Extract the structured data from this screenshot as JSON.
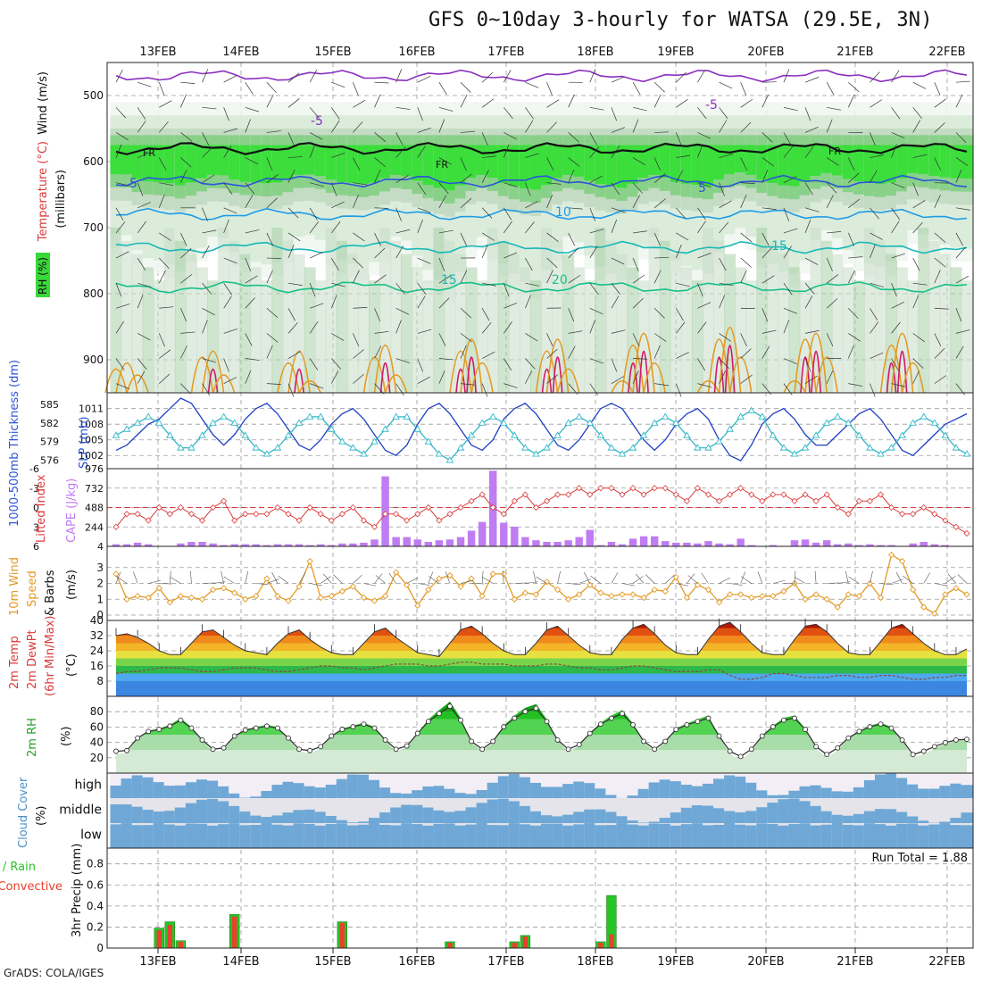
{
  "header": {
    "title": "GFS 0~10day 3-hourly for WATSA (29.5E, 3N)",
    "credit": "GrADS: COLA/IGES"
  },
  "colors": {
    "sounding_rh_green": "#39d839",
    "slp_line": "#1f3fc4",
    "thickness_line": "#35b8c8",
    "lifted_index": "#d93b3b",
    "cape_bars": "#c07cf2",
    "wind10m": "#e39a24",
    "precip_total": "#26c526",
    "precip_conv": "#e8412d",
    "cloud_blue": "#6fa8d6",
    "cloud_light": "#e4e4ea"
  },
  "time_axis": {
    "day_labels": [
      "13FEB",
      "14FEB",
      "15FEB",
      "16FEB",
      "17FEB",
      "18FEB",
      "19FEB",
      "20FEB",
      "21FEB",
      "22FEB"
    ]
  },
  "panels": {
    "sounding": {
      "ylabel_wind": "Wind (m/s)",
      "ylabel_temp": "Temperature (°C)",
      "ylabel_mb": "(millibars)",
      "ylabel_rh": "RH (%)",
      "y_ticks": [
        "500",
        "600",
        "700",
        "800",
        "900"
      ],
      "labels": {
        "fr": "FR",
        "m5": "-5",
        "p5": "5",
        "p10": "10",
        "p15": "15",
        "p20": "20"
      }
    },
    "slp": {
      "ylabel_left": "1000-500mb Thickness (dm)",
      "ylabel_right": "SLP (mb)",
      "left_ticks": [
        "585",
        "582",
        "579",
        "576"
      ],
      "right_ticks": [
        "1011",
        "1008",
        "1005",
        "1002"
      ]
    },
    "li": {
      "ylabel_left": "Lifted Index",
      "ylabel_right": "CAPE (J/kg)",
      "left_ticks": [
        "-6",
        "-3",
        "0",
        "3",
        "6"
      ],
      "right_ticks": [
        "976",
        "732",
        "488",
        "244",
        "4"
      ]
    },
    "wind": {
      "ylabel_1": "10m Wind",
      "ylabel_2": "Speed",
      "ylabel_3": "& Barbs",
      "ylabel_4": "(m/s)",
      "ticks": [
        "3",
        "2",
        "1",
        "0"
      ]
    },
    "temp": {
      "ylabel_1": "2m Temp",
      "ylabel_2": "2m DewPt",
      "ylabel_3": "(6hr Min/Max)",
      "ylabel_4": "(°C)",
      "ticks": [
        "40",
        "32",
        "24",
        "16",
        "8"
      ]
    },
    "rh": {
      "ylabel_1": "2m RH",
      "ylabel_2": "(%)",
      "ticks": [
        "80",
        "60",
        "40",
        "20"
      ]
    },
    "cloud": {
      "ylabel_1": "Cloud Cover",
      "ylabel_2": "(%)",
      "levels": [
        "high",
        "middle",
        "low"
      ]
    },
    "precip": {
      "ylabel_1": "Total / Rain",
      "ylabel_2": "Convective",
      "ylabel_3": "3hr Precip (mm)",
      "ticks": [
        "0.8",
        "0.6",
        "0.4",
        "0.2",
        "0"
      ],
      "run_total": "Run Total = 1.88"
    }
  },
  "chart_data": {
    "type": "line",
    "x": "3-hourly steps from 12FEB 15Z to 22FEB 12Z (80 steps)",
    "series": [
      {
        "name": "SLP (mb)",
        "ylim": [
          1000.5,
          1013
        ],
        "values": [
          1003,
          1004,
          1006,
          1008,
          1009,
          1011,
          1013,
          1012,
          1009,
          1006,
          1004,
          1006,
          1009,
          1011,
          1012,
          1010,
          1007,
          1004,
          1003,
          1005,
          1008,
          1010,
          1011,
          1009,
          1006,
          1003,
          1002,
          1004,
          1008,
          1011,
          1012,
          1010,
          1007,
          1004,
          1003,
          1005,
          1009,
          1011,
          1012,
          1010,
          1007,
          1004,
          1003,
          1005,
          1008,
          1011,
          1012,
          1011,
          1008,
          1005,
          1003,
          1005,
          1008,
          1010,
          1011,
          1009,
          1005,
          1002,
          1001,
          1004,
          1008,
          1010,
          1011,
          1009,
          1006,
          1004,
          1004,
          1006,
          1008,
          1010,
          1011,
          1009,
          1006,
          1003,
          1002,
          1004,
          1006,
          1008,
          1009,
          1010
        ]
      },
      {
        "name": "1000-500mb Thickness (dm)",
        "ylim": [
          575.5,
          586
        ],
        "values": [
          580,
          581,
          582,
          583,
          582,
          580,
          578,
          578,
          580,
          582,
          583,
          582,
          580,
          578,
          577,
          578,
          580,
          582,
          583,
          583,
          581,
          579,
          578,
          577,
          579,
          581,
          583,
          583,
          581,
          579,
          577,
          576,
          578,
          580,
          582,
          583,
          582,
          580,
          578,
          577,
          578,
          580,
          582,
          583,
          582,
          580,
          578,
          577,
          578,
          580,
          582,
          583,
          582,
          580,
          578,
          578,
          579,
          581,
          583,
          584,
          583,
          580,
          578,
          577,
          578,
          580,
          582,
          583,
          582,
          580,
          578,
          577,
          578,
          580,
          582,
          583,
          582,
          580,
          578,
          577
        ]
      },
      {
        "name": "Lifted Index",
        "ylim": [
          6,
          -6
        ],
        "values": [
          3,
          1,
          1,
          2,
          0,
          1,
          0,
          1,
          2,
          0,
          -1,
          2,
          1,
          1,
          1,
          0,
          1,
          2,
          0,
          1,
          2,
          1,
          0,
          2,
          3,
          1,
          1,
          2,
          1,
          0,
          2,
          1,
          0,
          -1,
          -2,
          0,
          1,
          -1,
          -2,
          0,
          -1,
          -2,
          -2,
          -3,
          -2,
          -3,
          -3,
          -2,
          -3,
          -2,
          -3,
          -3,
          -2,
          -1,
          -3,
          -2,
          -1,
          -2,
          -3,
          -2,
          -1,
          -2,
          -2,
          -1,
          -2,
          -1,
          -2,
          0,
          1,
          -1,
          -1,
          -2,
          0,
          1,
          1,
          0,
          1,
          2,
          3,
          4
        ]
      },
      {
        "name": "CAPE (J/kg)",
        "ylim": [
          4,
          976
        ],
        "values": [
          30,
          30,
          50,
          30,
          10,
          10,
          40,
          60,
          60,
          40,
          20,
          30,
          30,
          30,
          20,
          30,
          30,
          30,
          20,
          30,
          20,
          40,
          40,
          50,
          90,
          880,
          120,
          120,
          90,
          60,
          80,
          90,
          120,
          200,
          310,
          950,
          300,
          250,
          120,
          80,
          60,
          60,
          80,
          120,
          210,
          20,
          60,
          30,
          100,
          130,
          130,
          70,
          50,
          50,
          40,
          70,
          40,
          30,
          100,
          20,
          10,
          20,
          10,
          80,
          90,
          50,
          80,
          30,
          40,
          20,
          30,
          20,
          20,
          10,
          40,
          60,
          30,
          20,
          10,
          10
        ]
      },
      {
        "name": "10m Wind Speed (m/s)",
        "ylim": [
          0,
          4
        ],
        "values": [
          2.6,
          1.0,
          1.2,
          1.1,
          1.7,
          0.8,
          1.2,
          1.1,
          1.0,
          1.6,
          1.7,
          1.4,
          1.0,
          1.2,
          2.3,
          1.2,
          0.9,
          1.8,
          3.4,
          1.1,
          1.2,
          1.5,
          1.8,
          1.1,
          0.9,
          1.2,
          2.7,
          1.9,
          0.6,
          1.6,
          2.3,
          2.5,
          1.8,
          2.3,
          1.2,
          2.6,
          2.6,
          1.0,
          1.4,
          1.3,
          2.1,
          1.6,
          1.0,
          1.3,
          1.9,
          1.4,
          1.2,
          1.3,
          1.3,
          1.1,
          1.6,
          1.5,
          2.4,
          1.1,
          1.9,
          1.6,
          0.8,
          1.3,
          1.3,
          1.1,
          1.2,
          1.2,
          1.5,
          2.0,
          1.0,
          1.3,
          1.0,
          0.5,
          1.3,
          1.2,
          2.0,
          1.1,
          3.8,
          3.4,
          1.6,
          0.5,
          0.1,
          1.3,
          1.7,
          1.3
        ]
      },
      {
        "name": "2m Temp (°C)",
        "ylim": [
          0,
          40
        ],
        "values": [
          32,
          33,
          31,
          28,
          24,
          22,
          22,
          28,
          34,
          35,
          31,
          27,
          24,
          23,
          22,
          28,
          33,
          35,
          30,
          26,
          23,
          22,
          22,
          28,
          34,
          36,
          31,
          27,
          23,
          22,
          21,
          28,
          35,
          37,
          33,
          28,
          24,
          22,
          22,
          28,
          35,
          37,
          32,
          27,
          23,
          22,
          22,
          30,
          36,
          38,
          33,
          27,
          23,
          22,
          22,
          30,
          37,
          39,
          34,
          28,
          23,
          22,
          22,
          30,
          37,
          38,
          34,
          28,
          23,
          22,
          22,
          29,
          36,
          38,
          33,
          28,
          24,
          22,
          22,
          25
        ]
      },
      {
        "name": "2m DewPt (°C)",
        "ylim": [
          0,
          40
        ],
        "values": [
          12,
          13,
          13,
          14,
          15,
          15,
          15,
          14,
          13,
          13,
          14,
          15,
          15,
          15,
          14,
          13,
          13,
          14,
          15,
          16,
          16,
          15,
          15,
          14,
          15,
          16,
          17,
          17,
          17,
          16,
          16,
          17,
          18,
          18,
          17,
          17,
          17,
          16,
          16,
          16,
          17,
          17,
          16,
          15,
          15,
          14,
          14,
          15,
          16,
          16,
          15,
          14,
          13,
          13,
          13,
          14,
          14,
          11,
          9,
          9,
          10,
          12,
          12,
          11,
          10,
          10,
          10,
          11,
          11,
          10,
          10,
          11,
          11,
          10,
          9,
          9,
          10,
          10,
          11,
          11
        ]
      },
      {
        "name": "2m RH (%)",
        "ylim": [
          0,
          100
        ],
        "values": [
          25,
          26,
          45,
          55,
          58,
          63,
          72,
          60,
          42,
          28,
          30,
          48,
          57,
          60,
          63,
          60,
          45,
          28,
          26,
          32,
          48,
          58,
          62,
          66,
          60,
          42,
          28,
          33,
          52,
          70,
          82,
          93,
          72,
          40,
          28,
          40,
          62,
          75,
          85,
          90,
          70,
          42,
          28,
          35,
          52,
          66,
          75,
          82,
          65,
          40,
          28,
          40,
          58,
          65,
          70,
          75,
          48,
          25,
          17,
          28,
          48,
          62,
          72,
          75,
          58,
          32,
          20,
          30,
          45,
          55,
          62,
          66,
          60,
          42,
          20,
          25,
          32,
          38,
          42,
          43
        ]
      },
      {
        "name": "3hr Precip Total (mm)",
        "ylim": [
          0,
          0.95
        ],
        "values": [
          0,
          0,
          0,
          0,
          0.19,
          0.25,
          0.07,
          0,
          0,
          0,
          0,
          0.32,
          0,
          0,
          0,
          0,
          0,
          0,
          0,
          0,
          0,
          0.25,
          0,
          0,
          0,
          0,
          0,
          0,
          0,
          0,
          0,
          0.06,
          0,
          0,
          0,
          0,
          0,
          0.06,
          0.12,
          0,
          0,
          0,
          0,
          0,
          0,
          0.06,
          0.5,
          0,
          0,
          0,
          0,
          0,
          0,
          0,
          0,
          0,
          0,
          0,
          0,
          0,
          0,
          0,
          0,
          0,
          0,
          0,
          0,
          0,
          0,
          0,
          0,
          0,
          0,
          0,
          0,
          0,
          0,
          0,
          0,
          0
        ]
      },
      {
        "name": "3hr Precip Convective (mm)",
        "ylim": [
          0,
          0.95
        ],
        "values": [
          0,
          0,
          0,
          0,
          0.17,
          0.22,
          0.06,
          0,
          0,
          0,
          0,
          0.3,
          0,
          0,
          0,
          0,
          0,
          0,
          0,
          0,
          0,
          0.24,
          0,
          0,
          0,
          0,
          0,
          0,
          0,
          0,
          0,
          0.05,
          0,
          0,
          0,
          0,
          0,
          0.05,
          0.11,
          0,
          0,
          0,
          0,
          0,
          0,
          0.05,
          0.13,
          0,
          0,
          0,
          0,
          0,
          0,
          0,
          0,
          0,
          0,
          0,
          0,
          0,
          0,
          0,
          0,
          0,
          0,
          0,
          0,
          0,
          0,
          0,
          0,
          0,
          0,
          0,
          0,
          0,
          0,
          0,
          0,
          0
        ]
      }
    ]
  }
}
